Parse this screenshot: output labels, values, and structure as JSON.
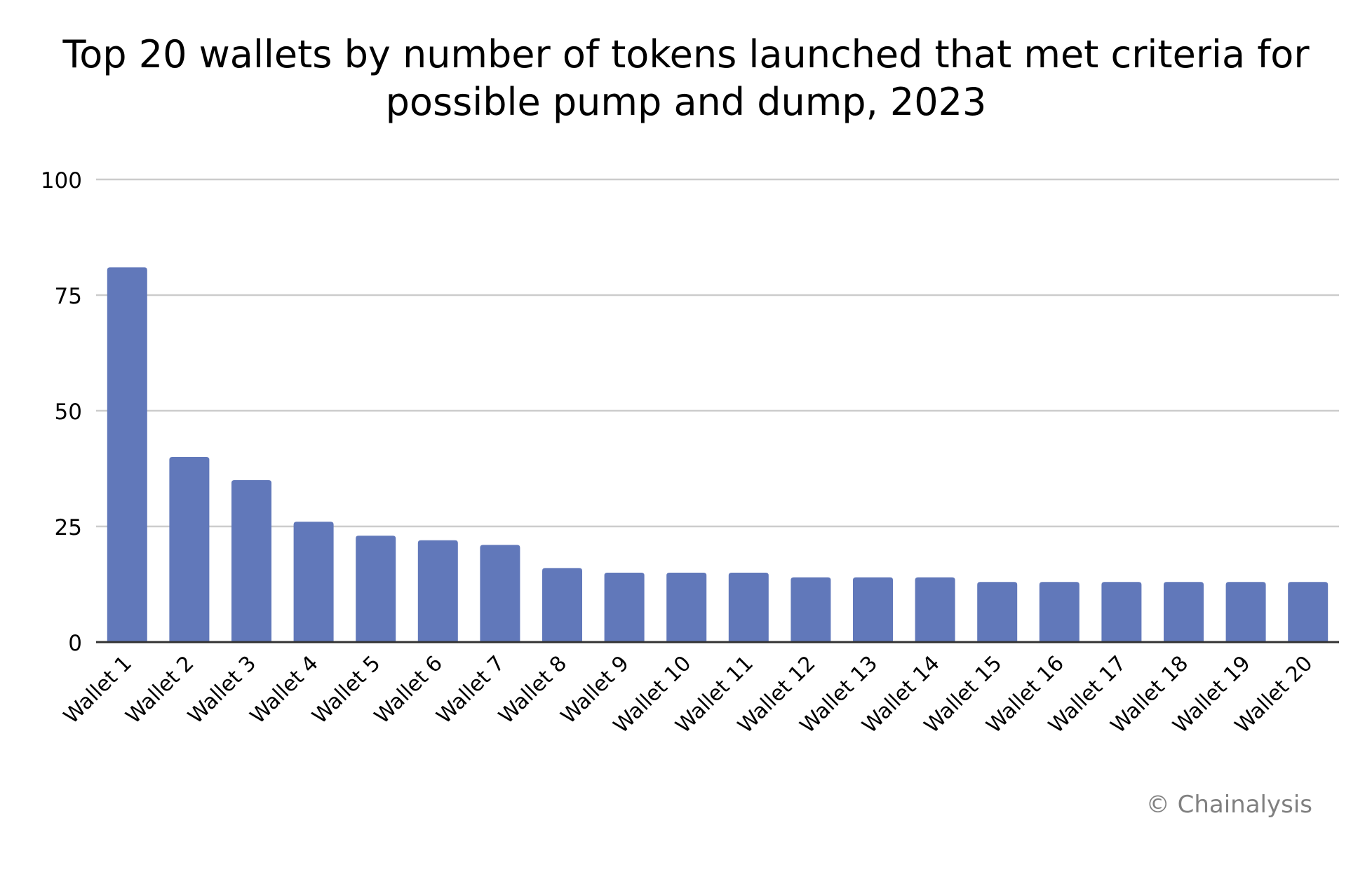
{
  "chart_data": {
    "type": "bar",
    "title": "Top 20 wallets by number of tokens launched that met criteria for possible pump and dump, 2023",
    "title_lines": [
      "Top 20 wallets by number of tokens launched that met criteria for",
      "possible pump and dump, 2023"
    ],
    "xlabel": "",
    "ylabel": "",
    "ylim": [
      0,
      100
    ],
    "yticks": [
      0,
      25,
      50,
      75,
      100
    ],
    "grid": true,
    "legend": "none",
    "categories": [
      "Wallet 1",
      "Wallet 2",
      "Wallet 3",
      "Wallet 4",
      "Wallet 5",
      "Wallet 6",
      "Wallet 7",
      "Wallet 8",
      "Wallet 9",
      "Wallet 10",
      "Wallet 11",
      "Wallet 12",
      "Wallet 13",
      "Wallet 14",
      "Wallet 15",
      "Wallet 16",
      "Wallet 17",
      "Wallet 18",
      "Wallet 19",
      "Wallet 20"
    ],
    "values": [
      81,
      40,
      35,
      26,
      23,
      22,
      21,
      16,
      15,
      15,
      15,
      14,
      14,
      14,
      13,
      13,
      13,
      13,
      13,
      13
    ],
    "bar_color": "#6178ba",
    "grid_color": "#cccccc",
    "axis_color": "#333333"
  },
  "credit": "© Chainalysis"
}
